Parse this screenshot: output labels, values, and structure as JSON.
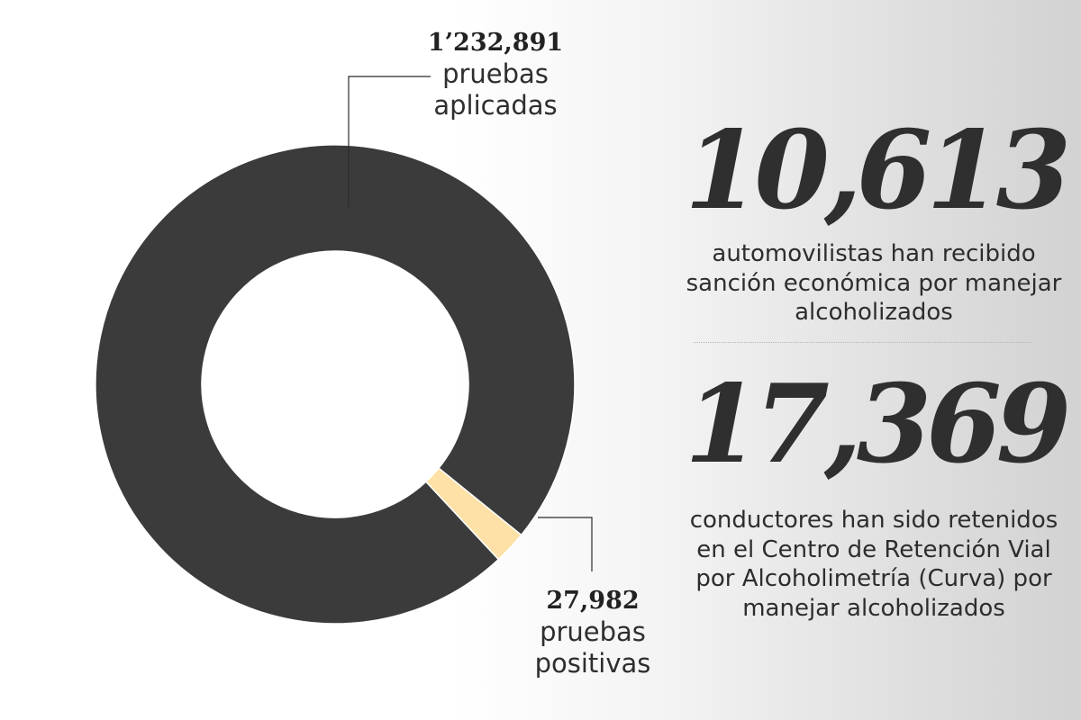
{
  "chart_data": {
    "type": "pie",
    "title": "",
    "categories": [
      "pruebas aplicadas",
      "pruebas positivas"
    ],
    "values": [
      1232891,
      27982
    ],
    "colors": [
      "#3b3b3b",
      "#fde1a6"
    ],
    "donut": true
  },
  "labels": {
    "applied": {
      "number": "1’232,891",
      "text": "pruebas aplicadas"
    },
    "positive": {
      "number": "27,982",
      "text": "pruebas positivas"
    }
  },
  "stats": [
    {
      "number": "10,613",
      "text": "automovilistas han recibido sanción económica por manejar alcoholizados"
    },
    {
      "number": "17,369",
      "text": "conductores han sido retenidos en el Centro de Retención Vial por Alcoholimetría (Curva) por manejar alcoholizados"
    }
  ],
  "colors": {
    "ring": "#3b3b3b",
    "highlight": "#fde1a6",
    "text": "#2b2b2b"
  }
}
